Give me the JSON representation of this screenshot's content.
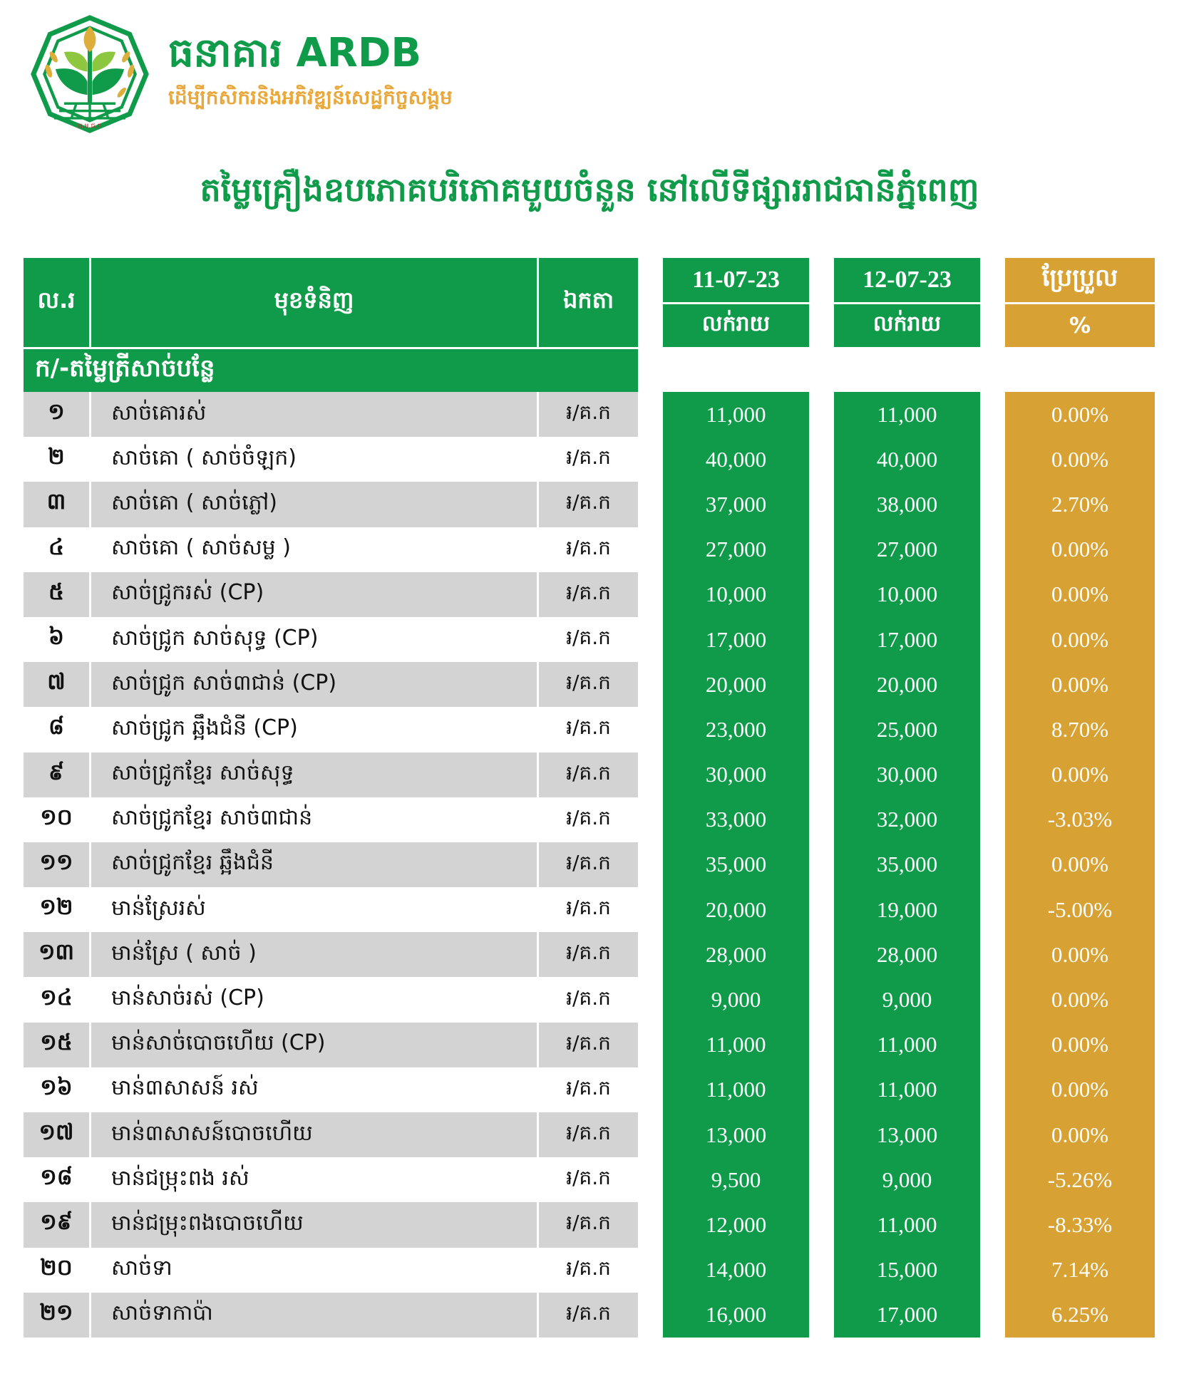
{
  "logo": {
    "bank_name": "ធនាគារ ARDB",
    "tagline": "ដើម្បីកសិករនិងអភិវឌ្ឍន៍សេដ្ឋកិច្ចសង្គម",
    "seal_text": "ធ.អ.ជ.ក"
  },
  "title": "តម្លៃគ្រឿងឧបភោគបរិភោគមួយចំនួន នៅលើទីផ្សាររាជធានីភ្នំពេញ",
  "table": {
    "headers": {
      "no": "ល.រ",
      "item": "មុខទំនិញ",
      "unit": "ឯកតា",
      "date1": "11-07-23",
      "date2": "12-07-23",
      "retail1": "លក់រាយ",
      "retail2": "លក់រាយ",
      "change": "ប្រែប្រួល",
      "percent": "%"
    },
    "section": "ក/-តម្លៃត្រីសាច់បន្លែ",
    "rows": [
      {
        "no": "១",
        "item": "សាច់គោរស់",
        "unit": "៛/គ.ក",
        "price1": "11,000",
        "price2": "11,000",
        "change": "0.00%"
      },
      {
        "no": "២",
        "item": "សាច់គោ ( សាច់ចំឡក)",
        "unit": "៛/គ.ក",
        "price1": "40,000",
        "price2": "40,000",
        "change": "0.00%"
      },
      {
        "no": "៣",
        "item": "សាច់គោ ( សាច់ភ្លៅ)",
        "unit": "៛/គ.ក",
        "price1": "37,000",
        "price2": "38,000",
        "change": "2.70%"
      },
      {
        "no": "៤",
        "item": "សាច់គោ ( សាច់សម្ល )",
        "unit": "៛/គ.ក",
        "price1": "27,000",
        "price2": "27,000",
        "change": "0.00%"
      },
      {
        "no": "៥",
        "item": "សាច់ជ្រូករស់ (CP)",
        "unit": "៛/គ.ក",
        "price1": "10,000",
        "price2": "10,000",
        "change": "0.00%"
      },
      {
        "no": "៦",
        "item": "សាច់ជ្រូក សាច់សុទ្ធ (CP)",
        "unit": "៛/គ.ក",
        "price1": "17,000",
        "price2": "17,000",
        "change": "0.00%"
      },
      {
        "no": "៧",
        "item": "សាច់ជ្រូក សាច់៣ជាន់ (CP)",
        "unit": "៛/គ.ក",
        "price1": "20,000",
        "price2": "20,000",
        "change": "0.00%"
      },
      {
        "no": "៨",
        "item": "សាច់ជ្រូក ឆ្អឹងជំនី (CP)",
        "unit": "៛/គ.ក",
        "price1": "23,000",
        "price2": "25,000",
        "change": "8.70%"
      },
      {
        "no": "៩",
        "item": "សាច់ជ្រូកខ្មែរ សាច់សុទ្ធ",
        "unit": "៛/គ.ក",
        "price1": "30,000",
        "price2": "30,000",
        "change": "0.00%"
      },
      {
        "no": "១០",
        "item": "សាច់ជ្រូកខ្មែរ សាច់៣ជាន់",
        "unit": "៛/គ.ក",
        "price1": "33,000",
        "price2": "32,000",
        "change": "-3.03%"
      },
      {
        "no": "១១",
        "item": "សាច់ជ្រូកខ្មែរ ឆ្អឹងជំនី",
        "unit": "៛/គ.ក",
        "price1": "35,000",
        "price2": "35,000",
        "change": "0.00%"
      },
      {
        "no": "១២",
        "item": "មាន់ស្រែរស់",
        "unit": "៛/គ.ក",
        "price1": "20,000",
        "price2": "19,000",
        "change": "-5.00%"
      },
      {
        "no": "១៣",
        "item": "មាន់ស្រែ ( សាច់ )",
        "unit": "៛/គ.ក",
        "price1": "28,000",
        "price2": "28,000",
        "change": "0.00%"
      },
      {
        "no": "១៤",
        "item": "មាន់សាច់រស់ (CP)",
        "unit": "៛/គ.ក",
        "price1": "9,000",
        "price2": "9,000",
        "change": "0.00%"
      },
      {
        "no": "១៥",
        "item": "មាន់សាច់បោចហើយ (CP)",
        "unit": "៛/គ.ក",
        "price1": "11,000",
        "price2": "11,000",
        "change": "0.00%"
      },
      {
        "no": "១៦",
        "item": "មាន់៣សាសន៍ រស់",
        "unit": "៛/គ.ក",
        "price1": "11,000",
        "price2": "11,000",
        "change": "0.00%"
      },
      {
        "no": "១៧",
        "item": "មាន់៣សាសន៍បោចហើយ",
        "unit": "៛/គ.ក",
        "price1": "13,000",
        "price2": "13,000",
        "change": "0.00%"
      },
      {
        "no": "១៨",
        "item": "មាន់ជម្រុះពង រស់",
        "unit": "៛/គ.ក",
        "price1": "9,500",
        "price2": "9,000",
        "change": "-5.26%"
      },
      {
        "no": "១៩",
        "item": "មាន់ជម្រុះពងបោចហើយ",
        "unit": "៛/គ.ក",
        "price1": "12,000",
        "price2": "11,000",
        "change": "-8.33%"
      },
      {
        "no": "២០",
        "item": "សាច់ទា",
        "unit": "៛/គ.ក",
        "price1": "14,000",
        "price2": "15,000",
        "change": "7.14%"
      },
      {
        "no": "២១",
        "item": "សាច់ទាកាប៉ា",
        "unit": "៛/គ.ក",
        "price1": "16,000",
        "price2": "17,000",
        "change": "6.25%"
      }
    ]
  },
  "colors": {
    "green": "#0f9b49",
    "gold": "#d7a233",
    "gray_row": "#d3d3d3",
    "tagline_gold": "#e9a83c",
    "leaf_light": "#8dc63f",
    "bud_gold": "#ddae3c",
    "seal_red": "#c42a2a"
  }
}
